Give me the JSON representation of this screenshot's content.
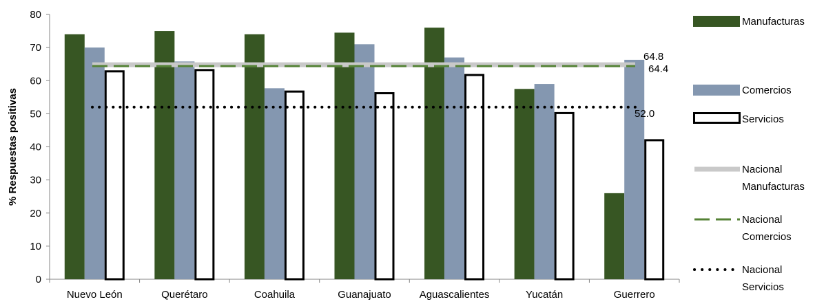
{
  "chart_data": {
    "type": "bar",
    "ylabel": "% Respuestas positivas",
    "ylim": [
      0,
      80
    ],
    "yticks": [
      0,
      10,
      20,
      30,
      40,
      50,
      60,
      70,
      80
    ],
    "categories": [
      "Nuevo León",
      "Querétaro",
      "Coahuila",
      "Guanajuato",
      "Aguascalientes",
      "Yucatán",
      "Guerrero"
    ],
    "series": [
      {
        "name": "Manufacturas",
        "values": [
          74.0,
          75.0,
          74.0,
          74.5,
          76.0,
          57.5,
          26.0
        ],
        "color": "#375623",
        "style": "filled"
      },
      {
        "name": "Comercios",
        "values": [
          70.0,
          65.8,
          57.7,
          71.0,
          67.0,
          59.0,
          66.3
        ],
        "color": "#8497B0",
        "style": "filled"
      },
      {
        "name": "Servicios",
        "values": [
          62.8,
          63.2,
          56.7,
          56.2,
          61.7,
          50.2,
          42.0
        ],
        "color": "#ffffff",
        "edge": "#000000",
        "style": "outline"
      }
    ],
    "reference_lines": [
      {
        "name": "Nacional\nManufacturas",
        "value": 64.8,
        "label": "64.8",
        "color": "#C9C9C9",
        "dash": "solid"
      },
      {
        "name": "Nacional\nComercios",
        "value": 64.4,
        "label": "64.4",
        "color": "#548235",
        "dash": "dashed"
      },
      {
        "name": "Nacional\nServicios",
        "value": 52.0,
        "label": "52.0",
        "color": "#000000",
        "dash": "dotted"
      }
    ],
    "legend_position": "right",
    "grid": false
  }
}
